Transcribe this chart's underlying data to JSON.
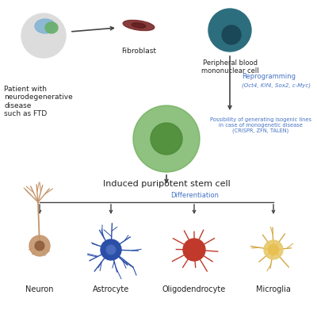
{
  "bg_color": "#ffffff",
  "arrow_color": "#444444",
  "blue_text_color": "#4472C4",
  "label_color": "#222222",
  "reprogramming_label": "Reprogramming",
  "reprogramming_factors": "(Oct4, Klf4, Sox2, c-Myc)",
  "isogenic_label": "Possibility of generating isogenic lines\nin case of monogenetic disease\n(CRISPR, ZFN, TALEN)",
  "differentiation_label": "Differentiation",
  "patient_label": "Patient with\nneurodegenerative\ndisease\nsuch as FTD",
  "fibroblast_label": "Fibroblast",
  "pbmc_label": "Peripheral blood\nmononuclear cell",
  "ipsc_label": "Induced puripotent stem cell",
  "cell_labels": [
    "Neuron",
    "Astrocyte",
    "Oligodendrocyte",
    "Microglia"
  ],
  "neuron_color": "#C4956A",
  "astrocyte_color": "#2B4EA8",
  "astrocyte_body": "#2B4EA8",
  "oligo_color": "#C0392B",
  "oligo_body": "#C0392B",
  "microglia_color": "#D4A843",
  "microglia_body": "#E8C96A",
  "fibroblast_color": "#7A2828",
  "pbmc_outer": "#2D6E7E",
  "pbmc_inner": "#1A4858",
  "ipsc_outer": "#6AAD55",
  "ipsc_inner": "#4A8A35",
  "head_color": "#DCDCDC",
  "brain_blue": "#7FB3D3",
  "brain_green": "#6AAF6A"
}
